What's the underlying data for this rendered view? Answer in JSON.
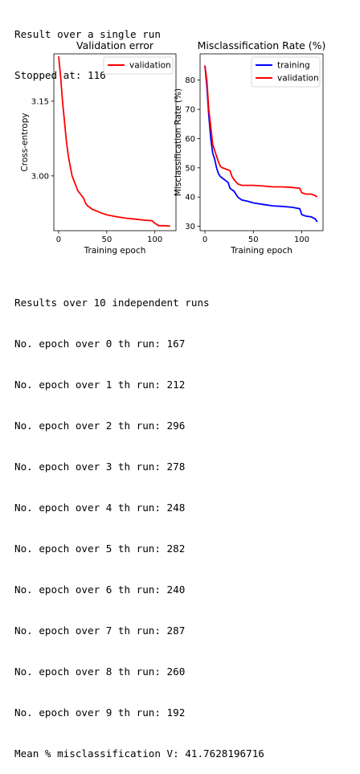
{
  "top_output": [
    "Result over a single run",
    "Stopped at: 116"
  ],
  "bottom_output": {
    "header": "Results over 10 independent runs",
    "runs": [
      "No. epoch over 0 th run: 167",
      "No. epoch over 1 th run: 212",
      "No. epoch over 2 th run: 296",
      "No. epoch over 3 th run: 278",
      "No. epoch over 4 th run: 248",
      "No. epoch over 5 th run: 282",
      "No. epoch over 6 th run: 240",
      "No. epoch over 7 th run: 287",
      "No. epoch over 8 th run: 260",
      "No. epoch over 9 th run: 192"
    ],
    "mean": "Mean % misclassification V: 41.7628196716"
  },
  "chart_data": [
    {
      "type": "line",
      "title": "Validation error",
      "xlabel": "Training epoch",
      "ylabel": "Cross-entropy",
      "xlim": [
        -5,
        122
      ],
      "ylim": [
        2.89,
        3.245
      ],
      "xticks": [
        "0",
        "50",
        "100"
      ],
      "xtick_values": [
        0,
        50,
        100
      ],
      "yticks": [
        "3.00",
        "3.15"
      ],
      "ytick_values": [
        3.0,
        3.15
      ],
      "legend": "top-right",
      "series": [
        {
          "name": "validation",
          "color": "#ff0000",
          "points": [
            [
              0,
              3.24
            ],
            [
              2,
              3.2
            ],
            [
              4,
              3.15
            ],
            [
              6,
              3.11
            ],
            [
              8,
              3.07
            ],
            [
              10,
              3.04
            ],
            [
              12,
              3.02
            ],
            [
              14,
              3.0
            ],
            [
              16,
              2.99
            ],
            [
              18,
              2.98
            ],
            [
              20,
              2.97
            ],
            [
              22,
              2.965
            ],
            [
              24,
              2.96
            ],
            [
              26,
              2.955
            ],
            [
              28,
              2.945
            ],
            [
              30,
              2.94
            ],
            [
              35,
              2.933
            ],
            [
              40,
              2.929
            ],
            [
              45,
              2.925
            ],
            [
              50,
              2.922
            ],
            [
              60,
              2.918
            ],
            [
              70,
              2.915
            ],
            [
              80,
              2.913
            ],
            [
              90,
              2.911
            ],
            [
              97,
              2.91
            ],
            [
              100,
              2.905
            ],
            [
              104,
              2.9
            ],
            [
              110,
              2.9
            ],
            [
              116,
              2.899
            ]
          ]
        }
      ]
    },
    {
      "type": "line",
      "title": "Misclassification Rate (%)",
      "xlabel": "Training epoch",
      "ylabel": "Misclassification Rate (%)",
      "xlim": [
        -5,
        122
      ],
      "ylim": [
        28.5,
        89
      ],
      "xticks": [
        "0",
        "50",
        "100"
      ],
      "xtick_values": [
        0,
        50,
        100
      ],
      "yticks": [
        "30",
        "40",
        "50",
        "60",
        "70",
        "80"
      ],
      "ytick_values": [
        30,
        40,
        50,
        60,
        70,
        80
      ],
      "legend": "top-right",
      "series": [
        {
          "name": "training",
          "color": "#0000ff",
          "points": [
            [
              0,
              85
            ],
            [
              2,
              78
            ],
            [
              4,
              68
            ],
            [
              6,
              60
            ],
            [
              8,
              55
            ],
            [
              10,
              53
            ],
            [
              12,
              50
            ],
            [
              14,
              48
            ],
            [
              16,
              47
            ],
            [
              18,
              46.5
            ],
            [
              20,
              46
            ],
            [
              22,
              45.5
            ],
            [
              24,
              45
            ],
            [
              26,
              43
            ],
            [
              28,
              42.5
            ],
            [
              30,
              42
            ],
            [
              34,
              40
            ],
            [
              38,
              39
            ],
            [
              45,
              38.5
            ],
            [
              50,
              38
            ],
            [
              60,
              37.5
            ],
            [
              70,
              37
            ],
            [
              80,
              36.8
            ],
            [
              90,
              36.5
            ],
            [
              98,
              36
            ],
            [
              100,
              34
            ],
            [
              104,
              33.5
            ],
            [
              110,
              33.2
            ],
            [
              114,
              32.5
            ],
            [
              116,
              31.5
            ]
          ]
        },
        {
          "name": "validation",
          "color": "#ff0000",
          "points": [
            [
              0,
              85
            ],
            [
              2,
              80
            ],
            [
              4,
              70
            ],
            [
              6,
              64
            ],
            [
              8,
              58
            ],
            [
              10,
              56
            ],
            [
              12,
              54
            ],
            [
              14,
              52
            ],
            [
              16,
              50.5
            ],
            [
              18,
              50
            ],
            [
              20,
              49.8
            ],
            [
              22,
              49.5
            ],
            [
              24,
              49.3
            ],
            [
              26,
              49
            ],
            [
              28,
              47
            ],
            [
              30,
              46
            ],
            [
              34,
              44.5
            ],
            [
              38,
              44
            ],
            [
              45,
              44
            ],
            [
              50,
              44
            ],
            [
              60,
              43.8
            ],
            [
              70,
              43.5
            ],
            [
              80,
              43.5
            ],
            [
              90,
              43.3
            ],
            [
              98,
              43
            ],
            [
              100,
              41.5
            ],
            [
              104,
              41
            ],
            [
              110,
              41
            ],
            [
              114,
              40.5
            ],
            [
              116,
              40
            ]
          ]
        }
      ]
    }
  ]
}
